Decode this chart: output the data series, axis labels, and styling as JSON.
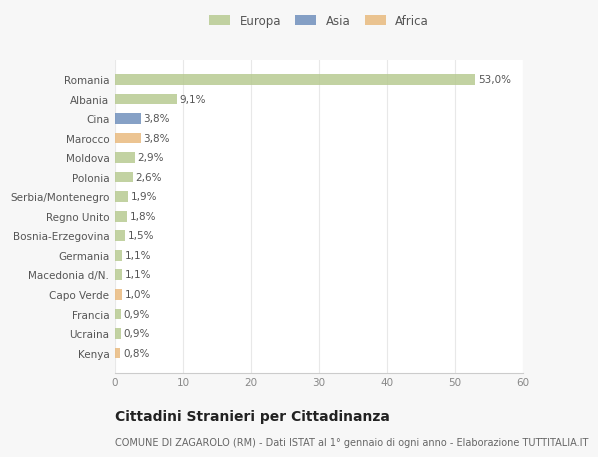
{
  "categories": [
    "Romania",
    "Albania",
    "Cina",
    "Marocco",
    "Moldova",
    "Polonia",
    "Serbia/Montenegro",
    "Regno Unito",
    "Bosnia-Erzegovina",
    "Germania",
    "Macedonia d/N.",
    "Capo Verde",
    "Francia",
    "Ucraina",
    "Kenya"
  ],
  "values": [
    53.0,
    9.1,
    3.8,
    3.8,
    2.9,
    2.6,
    1.9,
    1.8,
    1.5,
    1.1,
    1.1,
    1.0,
    0.9,
    0.9,
    0.8
  ],
  "labels": [
    "53,0%",
    "9,1%",
    "3,8%",
    "3,8%",
    "2,9%",
    "2,6%",
    "1,9%",
    "1,8%",
    "1,5%",
    "1,1%",
    "1,1%",
    "1,0%",
    "0,9%",
    "0,9%",
    "0,8%"
  ],
  "colors": [
    "#b5c98e",
    "#b5c98e",
    "#6b8cba",
    "#e8b87a",
    "#b5c98e",
    "#b5c98e",
    "#b5c98e",
    "#b5c98e",
    "#b5c98e",
    "#b5c98e",
    "#b5c98e",
    "#e8b87a",
    "#b5c98e",
    "#b5c98e",
    "#e8b87a"
  ],
  "legend_labels": [
    "Europa",
    "Asia",
    "Africa"
  ],
  "legend_colors": [
    "#b5c98e",
    "#6b8cba",
    "#e8b87a"
  ],
  "title": "Cittadini Stranieri per Cittadinanza",
  "subtitle": "COMUNE DI ZAGAROLO (RM) - Dati ISTAT al 1° gennaio di ogni anno - Elaborazione TUTTITALIA.IT",
  "xlim": [
    0,
    60
  ],
  "xticks": [
    0,
    10,
    20,
    30,
    40,
    50,
    60
  ],
  "background_color": "#f7f7f7",
  "plot_bg_color": "#ffffff",
  "grid_color": "#e8e8e8",
  "bar_height": 0.55,
  "label_fontsize": 7.5,
  "tick_fontsize": 7.5,
  "ytick_fontsize": 7.5,
  "title_fontsize": 10,
  "subtitle_fontsize": 7,
  "legend_fontsize": 8.5
}
